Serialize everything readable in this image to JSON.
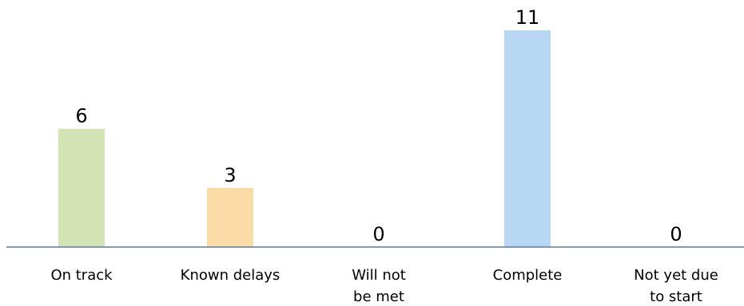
{
  "chart_data": {
    "type": "bar",
    "categories": [
      "On track",
      "Known delays",
      "Will not be met",
      "Complete",
      "Not yet due to start"
    ],
    "category_lines": [
      [
        "On track"
      ],
      [
        "Known delays"
      ],
      [
        "Will not",
        "be met"
      ],
      [
        "Complete"
      ],
      [
        "Not yet due",
        "to start"
      ]
    ],
    "values": [
      6,
      3,
      0,
      11,
      0
    ],
    "value_labels": [
      "6",
      "3",
      "0",
      "11",
      "0"
    ],
    "colors": [
      "#d3e4b4",
      "#fbdba6",
      "#d9d9d9",
      "#b7d7f2",
      "#d9d9d9"
    ],
    "axis_color": "#5b7aa0",
    "ylim": [
      0,
      11
    ],
    "grid": false,
    "title": "",
    "xlabel": "",
    "ylabel": ""
  }
}
